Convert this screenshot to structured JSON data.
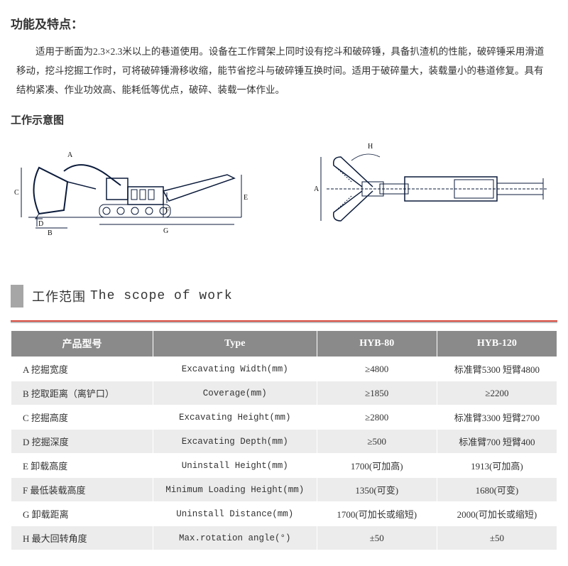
{
  "title_main": "功能及特点：",
  "description": "适用于断面为2.3×2.3米以上的巷道使用。设备在工作臂架上同时设有挖斗和破碎锤，具备扒渣机的性能，破碎锤采用滑道移动，挖斗挖掘工作时，可将破碎锤滑移收缩，能节省挖斗与破碎锤互换时间。适用于破碎量大，装载量小的巷道修复。具有结构紧凑、作业功效高、能耗低等优点，破碎、装载一体作业。",
  "sub_title": "工作示意图",
  "diagram_labels": {
    "left": {
      "A": "A",
      "B": "B",
      "C": "C",
      "D": "D",
      "E": "E",
      "F": "F",
      "G": "G"
    },
    "right": {
      "A": "A",
      "H": "H"
    }
  },
  "diagram_colors": {
    "stroke": "#0a1a3a",
    "dim_stroke": "#0a1a3a",
    "text": "#111111"
  },
  "scope": {
    "label_cn": "工作范围",
    "label_en": "The scope of work",
    "bar_color": "#a6a6a6"
  },
  "table": {
    "header_bg": "#8a8a8a",
    "header_fg": "#ffffff",
    "alt_row_bg": "#ececec",
    "red_line": "#d94a3e",
    "gray_line": "#c0c0c0",
    "columns": [
      "产品型号",
      "Type",
      "HYB-80",
      "HYB-120"
    ],
    "rows": [
      [
        "A 挖掘宽度",
        "Excavating Width(mm)",
        "≥4800",
        "标准臂5300 短臂4800"
      ],
      [
        "B 挖取距离（离铲口）",
        "Coverage(mm)",
        "≥1850",
        "≥2200"
      ],
      [
        "C 挖掘高度",
        "Excavating Height(mm)",
        "≥2800",
        "标准臂3300 短臂2700"
      ],
      [
        "D 挖掘深度",
        "Excavating Depth(mm)",
        "≥500",
        "标准臂700 短臂400"
      ],
      [
        "E 卸载高度",
        "Uninstall Height(mm)",
        "1700(可加高)",
        "1913(可加高)"
      ],
      [
        "F 最低装载高度",
        "Minimum Loading Height(mm)",
        "1350(可变)",
        "1680(可变)"
      ],
      [
        "G 卸载距离",
        "Uninstall Distance(mm)",
        "1700(可加长或缩短)",
        "2000(可加长或缩短)"
      ],
      [
        "H 最大回转角度",
        "Max.rotation angle(°)",
        "±50",
        "±50"
      ]
    ]
  }
}
